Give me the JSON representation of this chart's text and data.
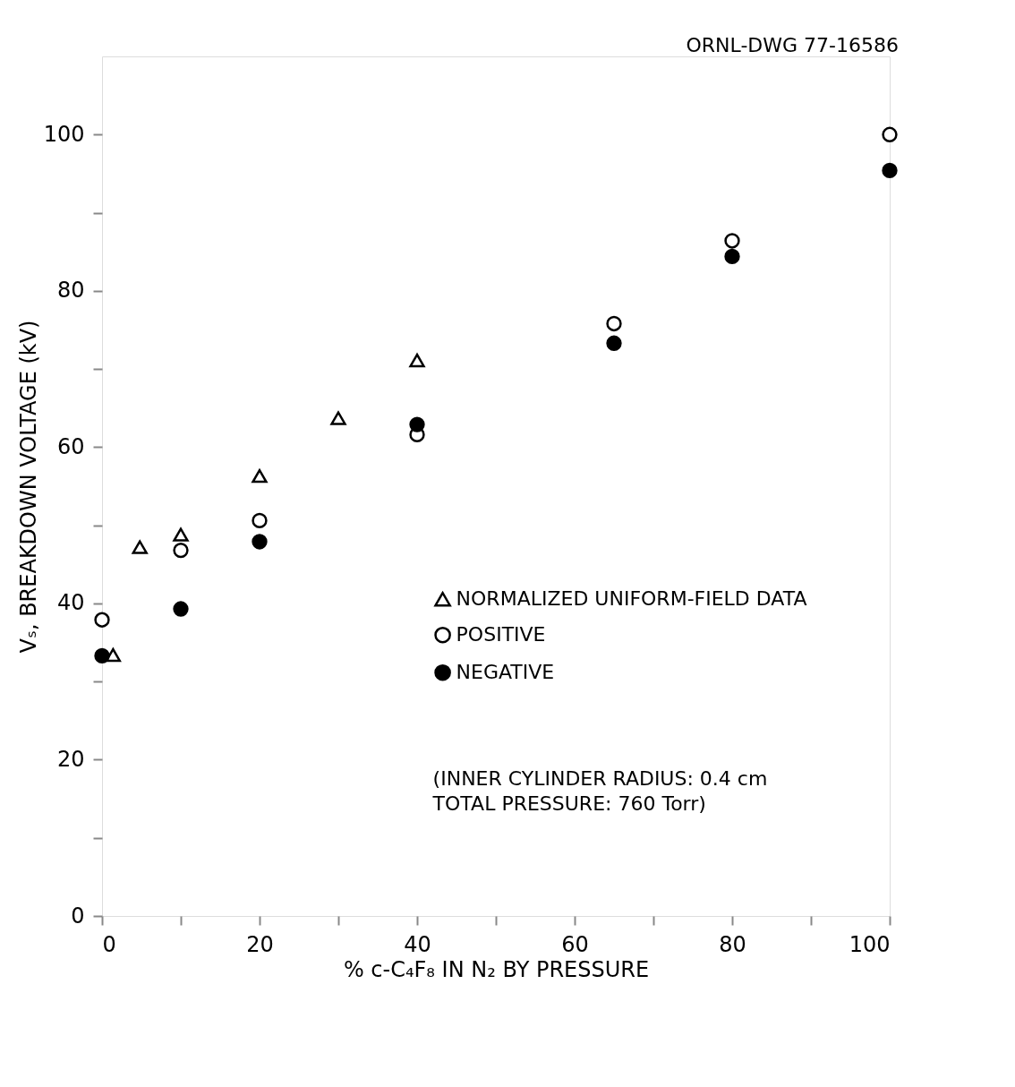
{
  "chart_data": {
    "type": "scatter",
    "xlabel": "% c-C₄F₈ IN N₂ BY PRESSURE",
    "ylabel": "Vₛ, BREAKDOWN VOLTAGE (kV)",
    "xlim": [
      0,
      100
    ],
    "ylim": [
      0,
      110
    ],
    "xticks": [
      0,
      {
        "value": 10,
        "label": null
      },
      20,
      {
        "value": 30,
        "label": null
      },
      40,
      {
        "value": 50,
        "label": null
      },
      60,
      {
        "value": 70,
        "label": null
      },
      80,
      {
        "value": 90,
        "label": null
      },
      100
    ],
    "yticks": [
      0,
      {
        "value": 10,
        "label": null
      },
      20,
      {
        "value": 30,
        "label": null
      },
      40,
      {
        "value": 50,
        "label": null
      },
      60,
      {
        "value": 70,
        "label": null
      },
      80,
      {
        "value": 90,
        "label": null
      },
      100
    ],
    "grid": false,
    "legend": "bottom right",
    "series": [
      {
        "name": "NORMALIZED UNIFORM-FIELD DATA",
        "color": "#ffffff",
        "marker": "triangle",
        "x": [
          1.4,
          4.8,
          10,
          20,
          30,
          40
        ],
        "values": [
          33.4,
          47.2,
          48.8,
          56.3,
          63.7,
          71.1
        ]
      },
      {
        "name": "POSITIVE",
        "color": "#ffffff",
        "marker": "circle",
        "x": [
          0,
          10,
          20,
          40,
          65,
          80,
          100
        ],
        "values": [
          37.9,
          46.8,
          50.6,
          61.6,
          75.8,
          86.4,
          100
        ]
      },
      {
        "name": "NEGATIVE",
        "color": "#000000",
        "marker": "circle",
        "x": [
          0,
          10,
          20,
          40,
          65,
          80,
          100
        ],
        "values": [
          33.3,
          39.3,
          47.9,
          62.9,
          73.3,
          84.4,
          95.4
        ]
      }
    ],
    "annotations": [
      "ORNL-DWG 77-16586",
      "(INNER CYLINDER RADIUS: 0.4 cm\nTOTAL PRESSURE: 760 Torr)"
    ]
  }
}
